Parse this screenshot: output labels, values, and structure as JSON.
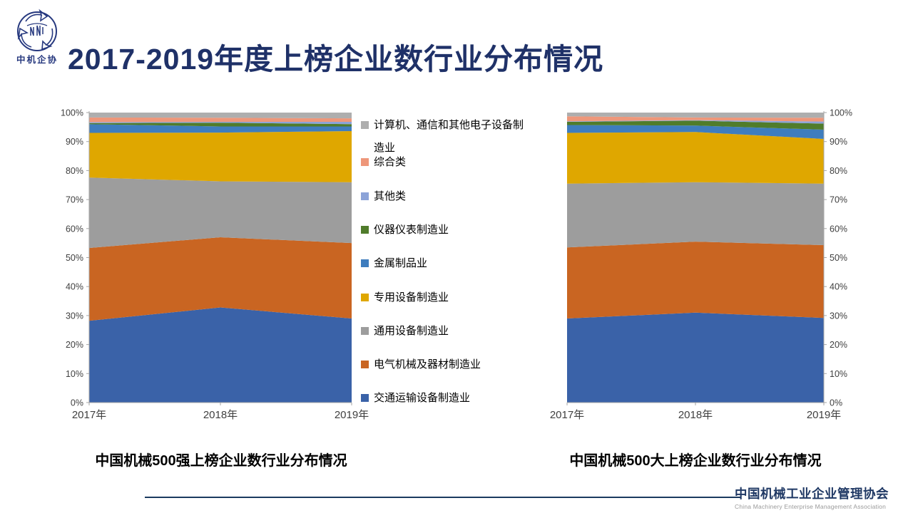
{
  "slide": {
    "title": "2017-2019年度上榜企业数行业分布情况",
    "logo_text": "中机企协",
    "footer": {
      "org_cn": "中国机械工业企业管理协会",
      "org_en": "China Machinery Enterprise Management Association"
    }
  },
  "colors": {
    "title_navy": "#1F3168",
    "footer_navy": "#1F3864",
    "axis_line": "#A6A6A6",
    "axis_text": "#404040"
  },
  "legend": [
    {
      "label": "计算机、通信和其他电子设备制造业",
      "color": "#AEAEAE"
    },
    {
      "label": "综合类",
      "color": "#EE977A"
    },
    {
      "label": "其他类",
      "color": "#8CA3D8"
    },
    {
      "label": "仪器仪表制造业",
      "color": "#507C2B"
    },
    {
      "label": "金属制品业",
      "color": "#3E7DBE"
    },
    {
      "label": "专用设备制造业",
      "color": "#DFA700"
    },
    {
      "label": "通用设备制造业",
      "color": "#9D9D9D"
    },
    {
      "label": "电气机械及器材制造业",
      "color": "#C96522"
    },
    {
      "label": "交通运输设备制造业",
      "color": "#3A62A8"
    }
  ],
  "chart_data": [
    {
      "type": "area",
      "stacked_percent": true,
      "title": "中国机械500强上榜企业数行业分布情况",
      "categories": [
        "2017年",
        "2018年",
        "2019年"
      ],
      "ylim": [
        0,
        100
      ],
      "ytick_step": 10,
      "ytick_suffix": "%",
      "yaxis_side": "left",
      "grid": false,
      "legend_position": "right-of-chart",
      "series": [
        {
          "name": "交通运输设备制造业",
          "color": "#3A62A8",
          "values": [
            28.2,
            32.8,
            29.0
          ]
        },
        {
          "name": "电气机械及器材制造业",
          "color": "#C96522",
          "values": [
            25.1,
            24.2,
            26.0
          ]
        },
        {
          "name": "通用设备制造业",
          "color": "#9D9D9D",
          "values": [
            24.3,
            19.3,
            21.0
          ]
        },
        {
          "name": "专用设备制造业",
          "color": "#DFA700",
          "values": [
            15.4,
            16.8,
            17.6
          ]
        },
        {
          "name": "金属制品业",
          "color": "#3E7DBE",
          "values": [
            3.0,
            2.1,
            1.6
          ]
        },
        {
          "name": "仪器仪表制造业",
          "color": "#507C2B",
          "values": [
            0.4,
            1.3,
            0.8
          ]
        },
        {
          "name": "其他类",
          "color": "#8CA3D8",
          "values": [
            0.3,
            0.3,
            0.8
          ]
        },
        {
          "name": "综合类",
          "color": "#EE977A",
          "values": [
            1.6,
            1.4,
            1.2
          ]
        },
        {
          "name": "计算机、通信和其他电子设备制造业",
          "color": "#AEAEAE",
          "values": [
            1.7,
            1.8,
            2.0
          ]
        }
      ]
    },
    {
      "type": "area",
      "stacked_percent": true,
      "title": "中国机械500大上榜企业数行业分布情况",
      "categories": [
        "2017年",
        "2018年",
        "2019年"
      ],
      "ylim": [
        0,
        100
      ],
      "ytick_step": 10,
      "ytick_suffix": "%",
      "yaxis_side": "right",
      "grid": false,
      "legend_position": "shared",
      "series": [
        {
          "name": "交通运输设备制造业",
          "color": "#3A62A8",
          "values": [
            29.0,
            31.0,
            29.2
          ]
        },
        {
          "name": "电气机械及器材制造业",
          "color": "#C96522",
          "values": [
            24.5,
            24.5,
            25.1
          ]
        },
        {
          "name": "通用设备制造业",
          "color": "#9D9D9D",
          "values": [
            22.0,
            20.5,
            21.2
          ]
        },
        {
          "name": "专用设备制造业",
          "color": "#DFA700",
          "values": [
            17.5,
            17.3,
            15.4
          ]
        },
        {
          "name": "金属制品业",
          "color": "#3E7DBE",
          "values": [
            2.7,
            2.2,
            3.2
          ]
        },
        {
          "name": "仪器仪表制造业",
          "color": "#507C2B",
          "values": [
            1.1,
            1.7,
            2.1
          ]
        },
        {
          "name": "其他类",
          "color": "#8CA3D8",
          "values": [
            0.2,
            0.2,
            0.7
          ]
        },
        {
          "name": "综合类",
          "color": "#EE977A",
          "values": [
            1.7,
            0.9,
            1.3
          ]
        },
        {
          "name": "计算机、通信和其他电子设备制造业",
          "color": "#AEAEAE",
          "values": [
            1.3,
            1.7,
            1.8
          ]
        }
      ]
    }
  ]
}
